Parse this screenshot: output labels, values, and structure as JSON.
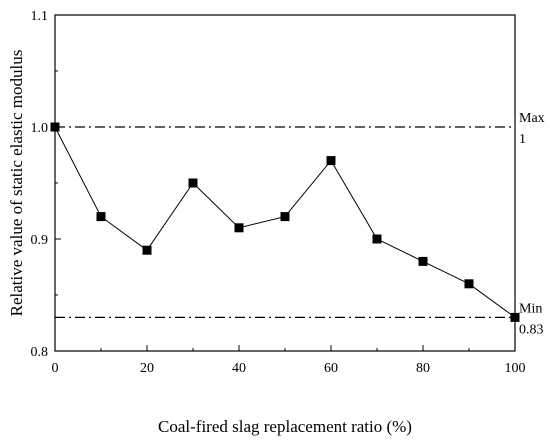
{
  "chart_data": {
    "type": "line",
    "xlabel": "Coal-fired slag replacement ratio (%)",
    "ylabel": "Relative value of static elastic modulus",
    "xlim": [
      0,
      100
    ],
    "ylim": [
      0.8,
      1.1
    ],
    "xticks": [
      0,
      20,
      40,
      60,
      80,
      100
    ],
    "yticks": [
      0.8,
      0.9,
      1.0,
      1.1
    ],
    "xtick_labels": [
      "0",
      "20",
      "40",
      "60",
      "80",
      "100"
    ],
    "ytick_labels": [
      "0.8",
      "0.9",
      "1.0",
      "1.1"
    ],
    "grid": false,
    "legend": "none",
    "marker": "square",
    "line_color": "#000000",
    "series": [
      {
        "x": [
          0,
          10,
          20,
          30,
          40,
          50,
          60,
          70,
          80,
          90,
          100
        ],
        "values": [
          1.0,
          0.92,
          0.89,
          0.95,
          0.91,
          0.92,
          0.97,
          0.9,
          0.88,
          0.86,
          0.83
        ]
      }
    ],
    "reference_lines": [
      {
        "y": 1.0,
        "style": "dash-dot",
        "label_top": "Max",
        "label_bottom": "1"
      },
      {
        "y": 0.83,
        "style": "dash-dot",
        "label_top": "Min",
        "label_bottom": "0.83"
      }
    ]
  }
}
